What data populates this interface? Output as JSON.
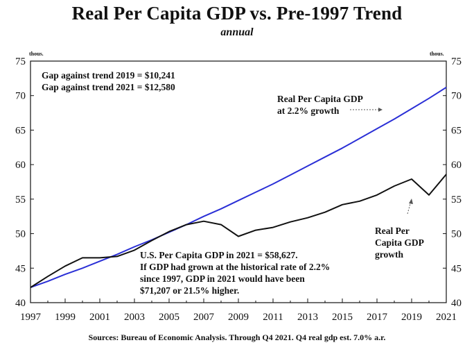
{
  "chart_data": {
    "type": "line",
    "title": "Real Per Capita GDP vs. Pre-1997 Trend",
    "subtitle": "annual",
    "source": "Sources: Bureau of Economic Analysis. Through Q4 2021. Q4 real gdp est. 7.0% a.r.",
    "y_unit_left": "thous.",
    "y_unit_right": "thous.",
    "ylim": [
      40,
      75
    ],
    "xlim": [
      1997,
      2021
    ],
    "y_ticks": [
      40,
      45,
      50,
      55,
      60,
      65,
      70,
      75
    ],
    "x_ticks": [
      1997,
      1999,
      2001,
      2003,
      2005,
      2007,
      2009,
      2011,
      2013,
      2015,
      2017,
      2019,
      2021
    ],
    "grid": false,
    "series": [
      {
        "name": "Real Per Capita GDP at 2.2% growth",
        "color": "#2a2fd6",
        "x": [
          1997,
          1998,
          1999,
          2000,
          2001,
          2002,
          2003,
          2004,
          2005,
          2006,
          2007,
          2008,
          2009,
          2010,
          2011,
          2012,
          2013,
          2014,
          2015,
          2016,
          2017,
          2018,
          2019,
          2020,
          2021
        ],
        "values": [
          42.2,
          43.1,
          44.1,
          45.0,
          46.0,
          47.0,
          48.1,
          49.1,
          50.2,
          51.3,
          52.5,
          53.6,
          54.8,
          56.0,
          57.2,
          58.5,
          59.8,
          61.1,
          62.4,
          63.8,
          65.2,
          66.6,
          68.1,
          69.6,
          71.2
        ]
      },
      {
        "name": "Real Per Capita GDP growth",
        "color": "#111111",
        "x": [
          1997,
          1998,
          1999,
          2000,
          2001,
          2002,
          2003,
          2004,
          2005,
          2006,
          2007,
          2008,
          2009,
          2010,
          2011,
          2012,
          2013,
          2014,
          2015,
          2016,
          2017,
          2018,
          2019,
          2020,
          2021
        ],
        "values": [
          42.2,
          43.8,
          45.3,
          46.5,
          46.5,
          46.7,
          47.6,
          49.0,
          50.3,
          51.3,
          51.8,
          51.3,
          49.6,
          50.5,
          50.9,
          51.7,
          52.3,
          53.1,
          54.2,
          54.7,
          55.6,
          56.9,
          57.9,
          55.6,
          58.6
        ]
      }
    ],
    "annotations": {
      "gap_2019": "Gap against trend 2019 = $10,241",
      "gap_2021": "Gap against trend 2021 = $12,580",
      "trend_label_1": "Real Per Capita GDP",
      "trend_label_2": "at 2.2% growth",
      "actual_label_1": "Real Per",
      "actual_label_2": "Capita GDP",
      "actual_label_3": "growth",
      "note_1": "U.S. Per Capita GDP in 2021 = $58,627.",
      "note_2": "If GDP had grown at the historical rate of 2.2%",
      "note_3": "since 1997, GDP in 2021 would have been",
      "note_4": "$71,207 or 21.5% higher."
    }
  }
}
